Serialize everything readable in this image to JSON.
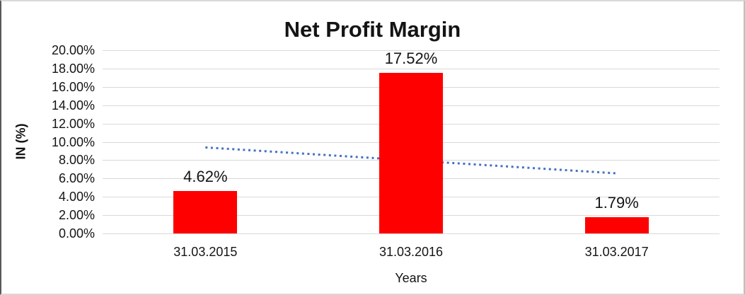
{
  "chart_data": {
    "type": "bar",
    "title": "Net Profit Margin",
    "categories": [
      "31.03.2015",
      "31.03.2016",
      "31.03.2017"
    ],
    "values": [
      4.62,
      17.52,
      1.79
    ],
    "value_labels": [
      "4.62%",
      "17.52%",
      "1.79%"
    ],
    "xlabel": "Years",
    "ylabel": "IN (%)",
    "ylim": [
      0,
      20
    ],
    "ytick_step": 2,
    "ytick_labels": [
      "0.00%",
      "2.00%",
      "4.00%",
      "6.00%",
      "8.00%",
      "10.00%",
      "12.00%",
      "14.00%",
      "16.00%",
      "18.00%",
      "20.00%"
    ],
    "grid": true,
    "legend": "none",
    "bar_color": "#FF0000",
    "gridline_color": "#D9D9D9",
    "text_color": "#141414",
    "trendline": {
      "type": "linear",
      "style": "dotted",
      "color": "#4472C4",
      "start_value": 9.39,
      "end_value": 6.56
    }
  }
}
